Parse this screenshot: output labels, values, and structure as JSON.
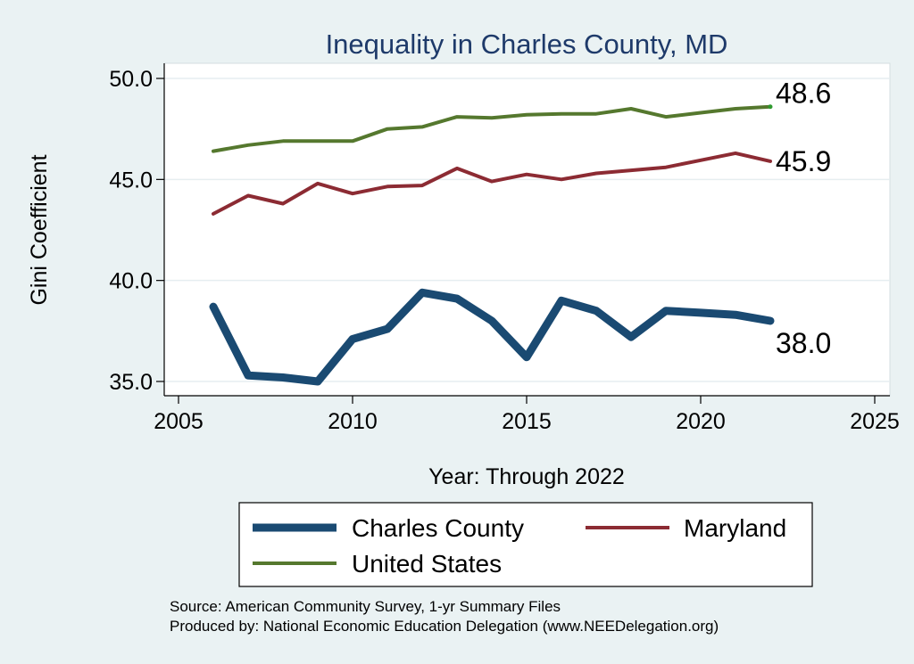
{
  "chart_data": {
    "type": "line",
    "title": "Inequality in Charles County, MD",
    "xlabel": "Year: Through 2022",
    "ylabel": "Gini Coefficient",
    "xlim": [
      2005,
      2025
    ],
    "ylim": [
      35,
      50
    ],
    "x_ticks": [
      2005,
      2010,
      2015,
      2020,
      2025
    ],
    "y_ticks": [
      35,
      40,
      45,
      50
    ],
    "x_tick_labels": [
      "2005",
      "2010",
      "2015",
      "2020",
      "2025"
    ],
    "y_tick_labels": [
      "35.0",
      "40.0",
      "45.0",
      "50.0"
    ],
    "grid": true,
    "legend_position": "bottom",
    "x": [
      2006,
      2007,
      2008,
      2009,
      2010,
      2011,
      2012,
      2013,
      2014,
      2015,
      2016,
      2017,
      2018,
      2019,
      2020,
      2021,
      2022
    ],
    "series": [
      {
        "name": "Charles County",
        "color": "#1a4a72",
        "values": [
          38.7,
          35.3,
          35.2,
          35.0,
          37.1,
          37.6,
          39.4,
          39.1,
          38.0,
          36.2,
          39.0,
          38.5,
          37.2,
          38.5,
          38.4,
          38.3,
          38.0
        ],
        "end_label": "38.0"
      },
      {
        "name": "Maryland",
        "color": "#8c2b33",
        "values": [
          43.3,
          44.2,
          43.8,
          44.8,
          44.3,
          44.65,
          44.7,
          45.55,
          44.9,
          45.25,
          45.0,
          45.3,
          45.45,
          45.6,
          45.95,
          46.3,
          45.9
        ],
        "end_label": "45.9"
      },
      {
        "name": "United States",
        "color": "#55782e",
        "values": [
          46.4,
          46.7,
          46.9,
          46.9,
          46.9,
          47.5,
          47.6,
          48.1,
          48.05,
          48.2,
          48.25,
          48.25,
          48.5,
          48.1,
          48.3,
          48.5,
          48.6
        ],
        "end_label": "48.6"
      }
    ],
    "source_lines": [
      "Source: American Community Survey, 1-yr Summary Files",
      "Produced by: National Economic Education Delegation (www.NEEDelegation.org)"
    ]
  }
}
